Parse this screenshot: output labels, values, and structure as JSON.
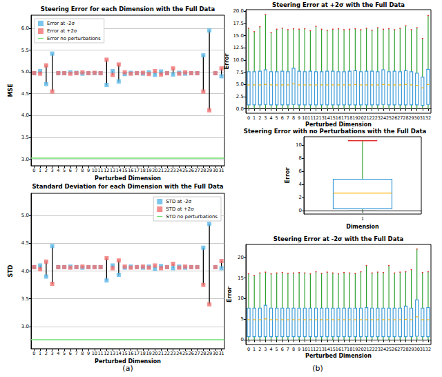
{
  "chart_data": [
    {
      "type": "scatter",
      "title": "Steering Error for each Dimension with the Full Data",
      "annotation": "(a)",
      "x_label": "Perturbed Dimension",
      "y_label": "MSE",
      "categories": [
        "0",
        "1",
        "2",
        "3",
        "4",
        "5",
        "6",
        "7",
        "8",
        "9",
        "10",
        "11",
        "12",
        "13",
        "14",
        "15",
        "16",
        "17",
        "18",
        "19",
        "20",
        "21",
        "22",
        "23",
        "24",
        "25",
        "26",
        "27",
        "28",
        "29",
        "30",
        "31"
      ],
      "ylim": [
        2.85,
        6.3
      ],
      "yticks": [
        {
          "value": 3,
          "label": "3.0"
        },
        {
          "value": 3.5,
          "label": "3.5"
        },
        {
          "value": 4,
          "label": "4.0"
        },
        {
          "value": 4.5,
          "label": "4.5"
        },
        {
          "value": 5,
          "label": "5.0"
        },
        {
          "value": 5.5,
          "label": "5.5"
        },
        {
          "value": 6,
          "label": "6.0"
        }
      ],
      "grid": true,
      "legend": "upper left",
      "series": [
        {
          "name": "Error at -2σ",
          "color": "#5bb8e8",
          "marker": "square",
          "values": [
            4.97,
            5.02,
            4.72,
            5.42,
            4.97,
            4.97,
            4.99,
            4.98,
            4.96,
            4.97,
            4.97,
            4.97,
            4.7,
            5.02,
            4.78,
            4.95,
            4.98,
            4.97,
            4.96,
            4.99,
            4.93,
            5.01,
            4.97,
            4.94,
            4.98,
            4.96,
            4.97,
            4.97,
            5.38,
            5.95,
            4.97,
            4.9
          ]
        },
        {
          "name": "Error at +2σ",
          "color": "#f07070",
          "marker": "square",
          "values": [
            4.97,
            4.96,
            5.15,
            4.55,
            4.97,
            4.97,
            4.96,
            4.97,
            4.99,
            4.97,
            4.98,
            4.97,
            5.28,
            4.93,
            5.17,
            4.99,
            4.96,
            4.97,
            4.98,
            4.95,
            5.02,
            4.94,
            4.97,
            5.08,
            4.96,
            4.99,
            4.97,
            4.97,
            4.55,
            4.12,
            4.97,
            5.08
          ]
        },
        {
          "name": "Error no perturbations",
          "type": "hline",
          "color": "#6ee06e",
          "value": 3.03
        }
      ]
    },
    {
      "type": "scatter",
      "title": "Standard Deviation for each Dimension with the Full Data",
      "x_label": "Perturbed Dimension",
      "y_label": "STD",
      "categories": [
        "0",
        "1",
        "2",
        "3",
        "4",
        "5",
        "6",
        "7",
        "8",
        "9",
        "10",
        "11",
        "12",
        "13",
        "14",
        "15",
        "16",
        "17",
        "18",
        "19",
        "20",
        "21",
        "22",
        "23",
        "24",
        "25",
        "26",
        "27",
        "28",
        "29",
        "30",
        "31"
      ],
      "ylim": [
        2.6,
        5.4
      ],
      "yticks": [
        {
          "value": 3,
          "label": "3.0"
        },
        {
          "value": 3.5,
          "label": "3.5"
        },
        {
          "value": 4,
          "label": "4.0"
        },
        {
          "value": 4.5,
          "label": "4.5"
        },
        {
          "value": 5,
          "label": "5.0"
        }
      ],
      "grid": true,
      "legend": "upper right",
      "series": [
        {
          "name": "STD at -2σ",
          "color": "#5bb8e8",
          "marker": "square",
          "values": [
            4.07,
            4.1,
            3.9,
            4.45,
            4.07,
            4.07,
            4.08,
            4.07,
            4.06,
            4.07,
            4.07,
            4.07,
            3.83,
            4.1,
            3.93,
            4.06,
            4.08,
            4.07,
            4.06,
            4.08,
            4.04,
            4.09,
            4.07,
            4.05,
            4.08,
            4.06,
            4.07,
            4.07,
            4.42,
            4.85,
            4.07,
            4.05
          ]
        },
        {
          "name": "STD at +2σ",
          "color": "#f07070",
          "marker": "square",
          "values": [
            4.07,
            4.03,
            4.17,
            3.77,
            4.07,
            4.07,
            4.06,
            4.07,
            4.08,
            4.07,
            4.07,
            4.07,
            4.23,
            4.05,
            4.19,
            4.08,
            4.06,
            4.07,
            4.08,
            4.06,
            4.1,
            4.05,
            4.07,
            4.13,
            4.06,
            4.08,
            4.07,
            4.07,
            3.75,
            3.4,
            4.07,
            4.18
          ]
        },
        {
          "name": "STD no perturbations",
          "type": "hline",
          "color": "#6ee06e",
          "value": 2.76
        }
      ]
    },
    {
      "type": "box",
      "title": "Steering Error at +2σ with the Full Data",
      "annotation": "(b)",
      "x_label": "Perturbed Dimension",
      "y_label": "Error",
      "color": "#3a9ad9",
      "categories": [
        "0",
        "1",
        "2",
        "3",
        "4",
        "5",
        "6",
        "7",
        "8",
        "9",
        "10",
        "11",
        "12",
        "13",
        "14",
        "15",
        "16",
        "17",
        "18",
        "19",
        "20",
        "21",
        "22",
        "23",
        "24",
        "25",
        "26",
        "27",
        "28",
        "29",
        "30",
        "31",
        "32"
      ],
      "ylim": [
        -0.9,
        20.3
      ],
      "yticks": [
        {
          "value": 0,
          "label": "0.0"
        },
        {
          "value": 2.5,
          "label": "2.5"
        },
        {
          "value": 5,
          "label": "5.0"
        },
        {
          "value": 7.5,
          "label": "7.5"
        },
        {
          "value": 10,
          "label": "10.0"
        },
        {
          "value": 12.5,
          "label": "12.5"
        },
        {
          "value": 15,
          "label": "15.0"
        },
        {
          "value": 17.5,
          "label": "17.5"
        },
        {
          "value": 20,
          "label": "20.0"
        }
      ],
      "grid": false,
      "min": [
        0.02,
        0.02,
        0.02,
        0.02,
        0.02,
        0.02,
        0.02,
        0.02,
        0.02,
        0.02,
        0.02,
        0.02,
        0.02,
        0.02,
        0.02,
        0.02,
        0.02,
        0.02,
        0.02,
        0.02,
        0.02,
        0.02,
        0.02,
        0.02,
        0.02,
        0.02,
        0.02,
        0.02,
        0.02,
        0.02,
        0.02,
        0.02,
        0.02
      ],
      "q1": [
        0.8,
        0.8,
        0.8,
        0.9,
        0.8,
        0.8,
        0.8,
        0.8,
        0.9,
        0.8,
        0.8,
        0.8,
        0.8,
        0.8,
        0.8,
        0.8,
        0.8,
        0.8,
        0.8,
        0.8,
        0.8,
        0.8,
        0.8,
        0.8,
        0.9,
        0.8,
        0.8,
        0.8,
        0.8,
        0.8,
        0.8,
        0.7,
        0.9
      ],
      "median": [
        4.9,
        4.9,
        4.9,
        5.0,
        4.9,
        4.9,
        4.9,
        4.9,
        5.1,
        4.9,
        4.9,
        4.9,
        4.9,
        4.9,
        4.9,
        4.9,
        4.9,
        4.9,
        4.9,
        5.0,
        4.9,
        4.9,
        4.9,
        4.9,
        5.0,
        4.9,
        4.9,
        4.9,
        5.0,
        4.9,
        4.8,
        4.3,
        5.0
      ],
      "q3": [
        7.6,
        7.6,
        7.7,
        8.0,
        7.6,
        7.6,
        7.7,
        7.6,
        8.3,
        7.7,
        7.6,
        7.7,
        7.6,
        7.6,
        7.7,
        7.7,
        7.6,
        7.6,
        7.7,
        7.8,
        7.6,
        7.7,
        7.7,
        7.6,
        8.0,
        7.6,
        7.7,
        7.6,
        7.8,
        7.6,
        7.3,
        6.5,
        8.1
      ],
      "max": [
        16.5,
        15.8,
        16.8,
        19.3,
        15.6,
        16.3,
        16.5,
        16.2,
        16.4,
        16.3,
        16.4,
        16.0,
        16.9,
        16.3,
        16.1,
        16.3,
        16.4,
        16.2,
        16.3,
        16.4,
        16.2,
        16.5,
        16.1,
        16.6,
        16.3,
        16.4,
        16.2,
        16.5,
        17.0,
        16.2,
        16.6,
        14.4,
        19.1
      ]
    },
    {
      "type": "box",
      "title": "Steering Error with no Perturbations with the Full Data",
      "x_label": "Dimension",
      "y_label": "Error",
      "color": "#3a9ad9",
      "categories": [
        "1"
      ],
      "ylim": [
        -0.5,
        11.3
      ],
      "yticks": [
        0,
        2,
        4,
        6,
        8,
        10
      ],
      "grid": false,
      "min": [
        0.0
      ],
      "q1": [
        0.3
      ],
      "median": [
        2.7
      ],
      "q3": [
        4.8
      ],
      "max": [
        10.7
      ]
    },
    {
      "type": "box",
      "title": "Steering Error at -2σ with the Full Data",
      "x_label": "Perturbed Dimension",
      "y_label": "Error",
      "color": "#3a9ad9",
      "categories": [
        "0",
        "1",
        "2",
        "3",
        "4",
        "5",
        "6",
        "7",
        "8",
        "9",
        "10",
        "11",
        "12",
        "13",
        "14",
        "15",
        "16",
        "17",
        "18",
        "19",
        "20",
        "21",
        "22",
        "23",
        "24",
        "25",
        "26",
        "27",
        "28",
        "29",
        "30",
        "31",
        "32"
      ],
      "ylim": [
        -1.1,
        23.1
      ],
      "yticks": [
        0,
        5,
        10,
        15,
        20
      ],
      "grid": false,
      "min": [
        0.02,
        0.02,
        0.02,
        0.02,
        0.02,
        0.02,
        0.02,
        0.02,
        0.02,
        0.02,
        0.02,
        0.02,
        0.02,
        0.02,
        0.02,
        0.02,
        0.02,
        0.02,
        0.02,
        0.02,
        0.02,
        0.02,
        0.02,
        0.02,
        0.02,
        0.02,
        0.02,
        0.02,
        0.02,
        0.02,
        0.02,
        0.02,
        0.02
      ],
      "q1": [
        0.8,
        0.8,
        0.8,
        0.8,
        0.8,
        0.8,
        0.8,
        0.8,
        0.8,
        0.8,
        0.8,
        0.8,
        0.8,
        0.8,
        0.8,
        0.8,
        0.8,
        0.8,
        0.8,
        0.8,
        0.8,
        0.8,
        0.8,
        0.8,
        0.8,
        0.8,
        0.8,
        0.8,
        0.8,
        0.8,
        0.9,
        0.8,
        0.8
      ],
      "median": [
        4.9,
        4.9,
        4.9,
        5.1,
        4.9,
        4.9,
        4.9,
        4.9,
        4.9,
        4.9,
        4.9,
        4.9,
        4.9,
        4.9,
        4.9,
        4.9,
        4.9,
        4.9,
        4.9,
        4.9,
        4.9,
        4.9,
        4.9,
        4.9,
        4.9,
        4.9,
        4.9,
        4.9,
        5.0,
        4.9,
        5.6,
        4.9,
        4.9
      ],
      "q3": [
        7.7,
        7.7,
        7.7,
        8.4,
        7.7,
        7.7,
        7.7,
        7.7,
        7.7,
        7.7,
        7.7,
        7.7,
        7.7,
        7.7,
        7.7,
        7.7,
        7.7,
        7.7,
        7.7,
        7.7,
        7.7,
        7.8,
        7.7,
        7.7,
        7.7,
        7.7,
        7.7,
        7.7,
        8.2,
        7.7,
        9.7,
        7.7,
        7.8
      ],
      "max": [
        16.0,
        15.6,
        16.2,
        16.4,
        16.0,
        16.2,
        16.3,
        16.1,
        16.2,
        16.3,
        16.2,
        16.0,
        16.5,
        16.1,
        16.4,
        16.2,
        16.0,
        16.3,
        16.2,
        16.1,
        16.5,
        18.0,
        16.2,
        16.4,
        16.3,
        18.0,
        16.2,
        16.4,
        16.5,
        17.0,
        22.0,
        16.3,
        16.5
      ]
    }
  ]
}
